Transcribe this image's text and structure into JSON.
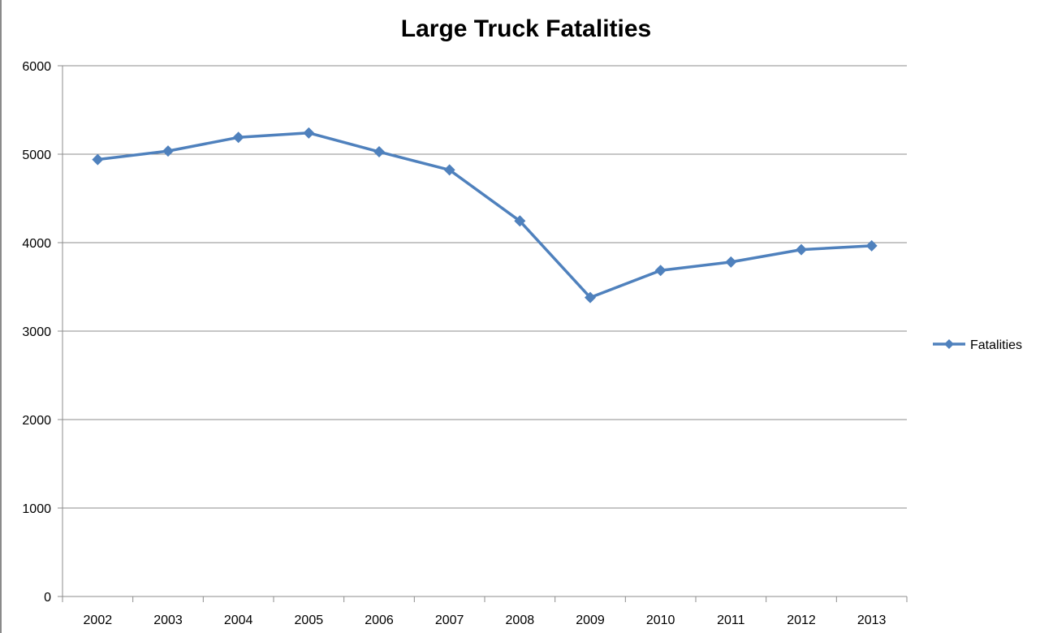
{
  "chart_data": {
    "type": "line",
    "title": "Large Truck Fatalities",
    "xlabel": "",
    "ylabel": "",
    "categories": [
      "2002",
      "2003",
      "2004",
      "2005",
      "2006",
      "2007",
      "2008",
      "2009",
      "2010",
      "2011",
      "2012",
      "2013"
    ],
    "series": [
      {
        "name": "Fatalities",
        "color": "#4F81BD",
        "marker": "diamond",
        "values": [
          4939,
          5036,
          5190,
          5240,
          5027,
          4822,
          4245,
          3380,
          3686,
          3781,
          3921,
          3964
        ]
      }
    ],
    "ylim": [
      0,
      6000
    ],
    "yticks": [
      "0",
      "1000",
      "2000",
      "3000",
      "4000",
      "5000",
      "6000"
    ],
    "grid": true,
    "legend_position": "right"
  }
}
